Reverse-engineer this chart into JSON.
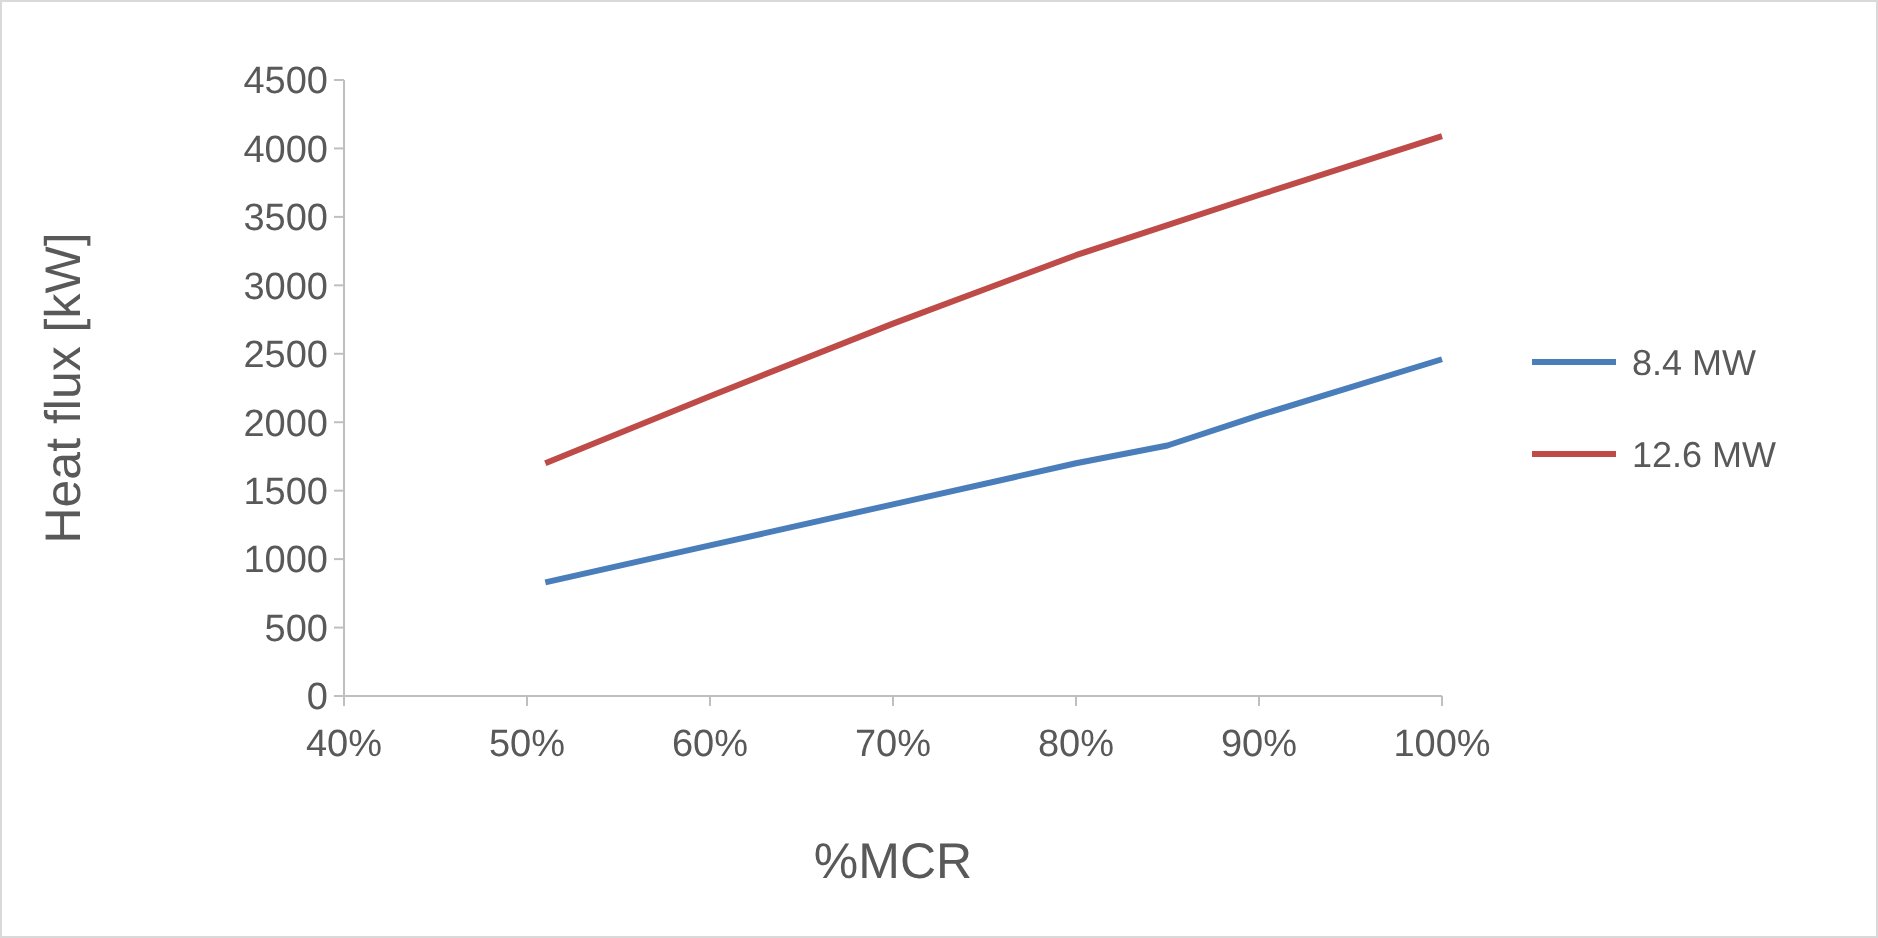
{
  "chart_data": {
    "type": "line",
    "xlabel": "%MCR",
    "ylabel": "Heat flux [kW]",
    "x": [
      51,
      60,
      70,
      80,
      85,
      90,
      100
    ],
    "series": [
      {
        "name": "8.4 MW",
        "color": "#4a7ebb",
        "values": [
          830,
          1100,
          1400,
          1700,
          1830,
          2050,
          2460
        ]
      },
      {
        "name": "12.6 MW",
        "color": "#be4b48",
        "values": [
          1700,
          2190,
          2720,
          3220,
          3440,
          3660,
          4090
        ]
      }
    ],
    "xlim": [
      40,
      100
    ],
    "xticks": [
      {
        "value": 40,
        "label": "40%"
      },
      {
        "value": 50,
        "label": "50%"
      },
      {
        "value": 60,
        "label": "60%"
      },
      {
        "value": 70,
        "label": "70%"
      },
      {
        "value": 80,
        "label": "80%"
      },
      {
        "value": 90,
        "label": "90%"
      },
      {
        "value": 100,
        "label": "100%"
      }
    ],
    "ylim": [
      0,
      4500
    ],
    "yticks": [
      0,
      500,
      1000,
      1500,
      2000,
      2500,
      3000,
      3500,
      4000,
      4500
    ],
    "legend": "right",
    "marker": "none",
    "line_style": "solid"
  }
}
